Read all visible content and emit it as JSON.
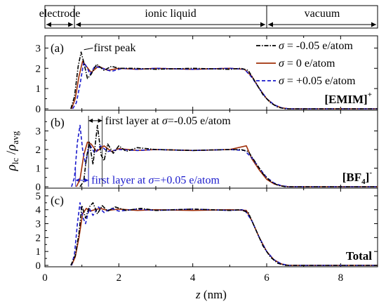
{
  "chart_data": {
    "type": "line",
    "xlabel_var": "z",
    "xlabel_unit": " (nm)",
    "ylabel": "ρlc / ρavg",
    "xlim": [
      0,
      9
    ],
    "x_ticks": [
      "0",
      "2",
      "4",
      "6",
      "8"
    ],
    "regions": [
      {
        "label": "electrode",
        "from": 0,
        "to": 0.8
      },
      {
        "label": "ionic liquid",
        "from": 0.8,
        "to": 6.0
      },
      {
        "label": "vacuum",
        "from": 6.0,
        "to": 9.0
      }
    ],
    "legend": [
      {
        "label": "σ = -0.05 e/atom",
        "color": "#000000",
        "dash": "dashdot"
      },
      {
        "label": "σ = 0 e/atom",
        "color": "#a0300a",
        "dash": "solid"
      },
      {
        "label": "σ = +0.05 e/atom",
        "color": "#1a1acc",
        "dash": "dashed"
      }
    ],
    "panels": [
      {
        "letter": "(a)",
        "species_label": "[EMIM]",
        "species_sup": "+",
        "species_sub": "",
        "ylim": [
          0,
          3.5
        ],
        "y_ticks": [
          0,
          1,
          2,
          3
        ],
        "annotation": "first peak",
        "series": [
          {
            "name": "σ = -0.05 e/atom",
            "x": [
              0.7,
              0.8,
              0.9,
              0.98,
              1.05,
              1.15,
              1.25,
              1.4,
              1.6,
              1.8,
              2.0,
              2.4,
              3.0,
              4.0,
              5.0,
              5.3,
              5.5,
              5.7,
              5.9,
              6.1,
              6.3,
              6.5,
              9.0
            ],
            "y": [
              0,
              0.6,
              2.1,
              2.8,
              2.3,
              1.5,
              1.7,
              2.2,
              1.9,
              2.1,
              2.0,
              2.0,
              1.95,
              2.0,
              1.95,
              2.0,
              1.9,
              1.3,
              0.7,
              0.3,
              0.08,
              0,
              0
            ]
          },
          {
            "name": "σ = 0 e/atom",
            "x": [
              0.72,
              0.82,
              0.92,
              1.02,
              1.12,
              1.25,
              1.45,
              1.7,
              2.0,
              2.5,
              3.0,
              4.0,
              5.0,
              5.4,
              5.6,
              5.8,
              6.0,
              6.2,
              6.4,
              6.6,
              9.0
            ],
            "y": [
              0,
              0.5,
              1.6,
              2.35,
              2.1,
              1.8,
              2.1,
              1.9,
              2.0,
              1.95,
              2.0,
              1.95,
              2.0,
              1.95,
              1.6,
              1.0,
              0.5,
              0.2,
              0.05,
              0,
              0
            ]
          },
          {
            "name": "σ = +0.05 e/atom",
            "x": [
              0.75,
              0.85,
              0.95,
              1.05,
              1.15,
              1.22,
              1.35,
              1.55,
              1.8,
              2.1,
              2.5,
              3.0,
              4.0,
              5.0,
              5.4,
              5.6,
              5.8,
              6.0,
              6.2,
              6.4,
              6.6,
              9.0
            ],
            "y": [
              0,
              0.3,
              1.2,
              2.3,
              2.0,
              1.7,
              2.1,
              2.0,
              1.85,
              2.0,
              1.95,
              2.0,
              1.95,
              2.0,
              1.95,
              1.55,
              1.0,
              0.5,
              0.2,
              0.05,
              0,
              0
            ]
          }
        ]
      },
      {
        "letter": "(b)",
        "species_label": "[BF",
        "species_sup": "-",
        "species_sub": "4",
        "ylim": [
          0,
          4.0
        ],
        "y_ticks": [
          0,
          1,
          2,
          3
        ],
        "annotation_top_prefix": "first layer at ",
        "annotation_top_suffix": "=-0.05 e/atom",
        "annotation_bottom_prefix": "first layer at ",
        "annotation_bottom_suffix": "=+0.05 e/atom",
        "sigma_symbol": "σ",
        "layer_ref_x": [
          0.83,
          1.18,
          1.55
        ],
        "series": [
          {
            "name": "σ = -0.05 e/atom",
            "x": [
              0.95,
              1.05,
              1.12,
              1.2,
              1.3,
              1.42,
              1.52,
              1.6,
              1.7,
              1.85,
              2.0,
              2.2,
              2.5,
              3.0,
              4.0,
              5.0,
              5.3,
              5.5,
              5.7,
              5.9,
              6.1,
              6.3,
              6.5,
              9.0
            ],
            "y": [
              0,
              0.3,
              1.5,
              2.4,
              1.2,
              3.3,
              1.7,
              1.4,
              2.3,
              1.8,
              2.2,
              1.9,
              2.1,
              2.0,
              1.95,
              2.0,
              2.0,
              1.9,
              1.3,
              0.7,
              0.3,
              0.08,
              0,
              0
            ]
          },
          {
            "name": "σ = 0 e/atom",
            "x": [
              0.85,
              0.95,
              1.05,
              1.15,
              1.25,
              1.4,
              1.6,
              1.8,
              2.0,
              2.5,
              3.0,
              4.0,
              5.0,
              5.45,
              5.6,
              5.8,
              6.0,
              6.2,
              6.4,
              6.6,
              9.0
            ],
            "y": [
              0,
              0.4,
              1.7,
              2.4,
              2.3,
              1.9,
              2.2,
              1.9,
              2.05,
              1.95,
              2.0,
              1.95,
              2.0,
              2.2,
              1.5,
              0.9,
              0.4,
              0.15,
              0.05,
              0,
              0
            ]
          },
          {
            "name": "σ = +0.05 e/atom",
            "x": [
              0.72,
              0.8,
              0.88,
              0.95,
              1.02,
              1.1,
              1.2,
              1.35,
              1.5,
              1.7,
              2.0,
              2.5,
              3.0,
              4.0,
              5.0,
              5.4,
              5.6,
              5.8,
              6.0,
              6.2,
              6.4,
              6.6,
              9.0
            ],
            "y": [
              0,
              0.5,
              2.4,
              3.3,
              2.0,
              1.2,
              2.3,
              1.8,
              2.2,
              1.9,
              2.0,
              1.95,
              2.0,
              1.95,
              2.0,
              1.95,
              1.55,
              1.0,
              0.5,
              0.2,
              0.05,
              0,
              0
            ]
          }
        ]
      },
      {
        "letter": "(c)",
        "species_label": "Total",
        "species_sup": "",
        "species_sub": "",
        "ylim": [
          0,
          5.4
        ],
        "y_ticks": [
          0,
          1,
          2,
          3,
          4,
          5
        ],
        "series": [
          {
            "name": "σ = -0.05 e/atom",
            "x": [
              0.7,
              0.82,
              0.92,
              1.0,
              1.1,
              1.2,
              1.3,
              1.42,
              1.55,
              1.7,
              1.9,
              2.2,
              2.6,
              3.0,
              4.0,
              5.0,
              5.3,
              5.5,
              5.7,
              5.9,
              6.1,
              6.3,
              6.5,
              9.0
            ],
            "y": [
              0,
              0.7,
              2.3,
              4.3,
              3.4,
              4.2,
              4.5,
              3.7,
              4.3,
              3.9,
              4.2,
              3.95,
              4.1,
              3.95,
              4.05,
              3.95,
              4.0,
              3.8,
              2.6,
              1.4,
              0.6,
              0.15,
              0,
              0
            ]
          },
          {
            "name": "σ = 0 e/atom",
            "x": [
              0.72,
              0.82,
              0.92,
              1.02,
              1.12,
              1.22,
              1.35,
              1.5,
              1.7,
              2.0,
              2.5,
              3.0,
              4.0,
              5.0,
              5.45,
              5.6,
              5.8,
              6.0,
              6.2,
              6.4,
              6.6,
              9.0
            ],
            "y": [
              0,
              0.6,
              2.0,
              3.7,
              4.1,
              3.9,
              4.0,
              4.1,
              3.95,
              4.05,
              3.95,
              4.0,
              3.95,
              4.0,
              3.95,
              3.2,
              2.0,
              1.0,
              0.4,
              0.1,
              0,
              0
            ]
          },
          {
            "name": "σ = +0.05 e/atom",
            "x": [
              0.72,
              0.8,
              0.88,
              0.95,
              1.02,
              1.1,
              1.2,
              1.3,
              1.45,
              1.6,
              1.8,
              2.0,
              2.5,
              3.0,
              4.0,
              5.0,
              5.4,
              5.6,
              5.8,
              6.0,
              6.2,
              6.4,
              6.6,
              9.0
            ],
            "y": [
              0,
              0.8,
              3.0,
              4.5,
              3.5,
              3.0,
              4.1,
              3.6,
              4.2,
              3.8,
              4.1,
              3.9,
              4.05,
              3.95,
              4.05,
              3.95,
              4.0,
              3.2,
              2.0,
              1.0,
              0.4,
              0.1,
              0,
              0
            ]
          }
        ]
      }
    ]
  }
}
